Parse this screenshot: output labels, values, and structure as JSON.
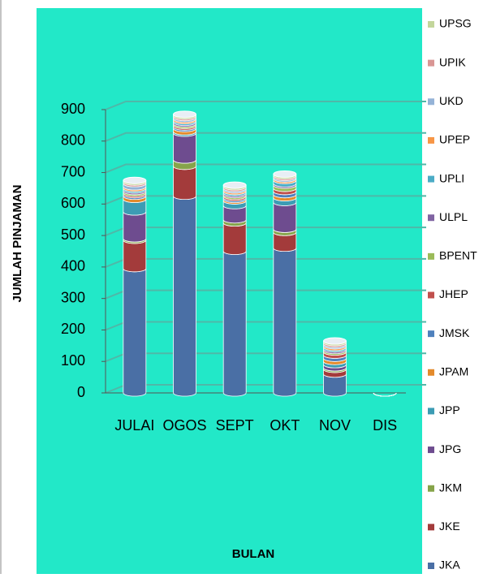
{
  "chart_data": {
    "type": "bar",
    "stacked": true,
    "xlabel": "BULAN",
    "ylabel": "JUMLAH PINJAMAN",
    "categories": [
      "JULAI",
      "OGOS",
      "SEPT",
      "OKT",
      "NOV",
      "DIS"
    ],
    "ylim": [
      0,
      900
    ],
    "yticks": [
      0,
      100,
      200,
      300,
      400,
      500,
      600,
      700,
      800,
      900
    ],
    "grid": true,
    "legend": "right",
    "series": [
      {
        "name": "JKA",
        "color": "#4a6fa5",
        "values": [
          395,
          625,
          450,
          460,
          60,
          0
        ]
      },
      {
        "name": "JKE",
        "color": "#a33b3b",
        "values": [
          90,
          95,
          90,
          50,
          15,
          0
        ]
      },
      {
        "name": "JKM",
        "color": "#86a44a",
        "values": [
          5,
          20,
          10,
          10,
          5,
          0
        ]
      },
      {
        "name": "JPG",
        "color": "#6e4c8f",
        "values": [
          85,
          85,
          45,
          85,
          10,
          0
        ]
      },
      {
        "name": "JPP",
        "color": "#3c9cb4",
        "values": [
          40,
          5,
          15,
          15,
          10,
          0
        ]
      },
      {
        "name": "JPAM",
        "color": "#e38a2c",
        "values": [
          10,
          10,
          5,
          10,
          10,
          0
        ]
      },
      {
        "name": "JMSK",
        "color": "#4f81bd",
        "values": [
          5,
          5,
          5,
          10,
          10,
          0
        ]
      },
      {
        "name": "JHEP",
        "color": "#c0504d",
        "values": [
          5,
          5,
          5,
          10,
          10,
          0
        ]
      },
      {
        "name": "BPENT",
        "color": "#9bbb59",
        "values": [
          5,
          5,
          5,
          10,
          5,
          0
        ]
      },
      {
        "name": "ULPL",
        "color": "#8064a2",
        "values": [
          5,
          5,
          5,
          5,
          5,
          0
        ]
      },
      {
        "name": "UPLI",
        "color": "#4bacc6",
        "values": [
          5,
          5,
          5,
          10,
          5,
          0
        ]
      },
      {
        "name": "UPEP",
        "color": "#f79646",
        "values": [
          5,
          5,
          5,
          5,
          5,
          0
        ]
      },
      {
        "name": "UKD",
        "color": "#95b3d7",
        "values": [
          10,
          5,
          5,
          5,
          5,
          0
        ]
      },
      {
        "name": "UPIK",
        "color": "#d99694",
        "values": [
          5,
          5,
          5,
          5,
          5,
          0
        ]
      },
      {
        "name": "UPSG",
        "color": "#c3d69b",
        "values": [
          5,
          5,
          5,
          5,
          5,
          0
        ]
      }
    ]
  }
}
